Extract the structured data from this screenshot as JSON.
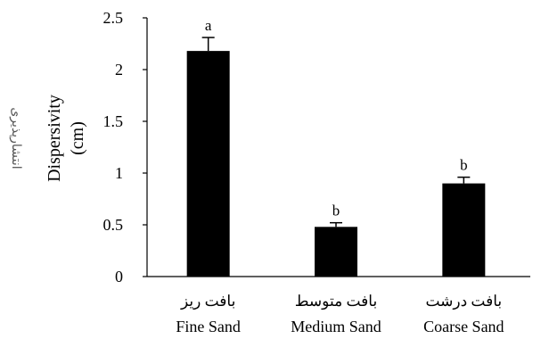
{
  "chart_data": {
    "type": "bar",
    "categories_fa": [
      "بافت ریز",
      "بافت متوسط",
      "بافت درشت"
    ],
    "categories": [
      "Fine Sand",
      "Medium Sand",
      "Coarse Sand"
    ],
    "values": [
      2.18,
      0.48,
      0.9
    ],
    "errors": [
      0.13,
      0.04,
      0.06
    ],
    "significance": [
      "a",
      "b",
      "b"
    ],
    "ylabel": "Dispersivity",
    "ylabel_unit": "(cm)",
    "ylabel_fa": "انتشارپذیری",
    "ylim": [
      0,
      2.5
    ],
    "yticks": [
      "0",
      "0.5",
      "1",
      "1.5",
      "2",
      "2.5"
    ],
    "yticks_values": [
      0,
      0.5,
      1,
      1.5,
      2,
      2.5
    ],
    "grid": false,
    "bar_color": "#000000"
  }
}
